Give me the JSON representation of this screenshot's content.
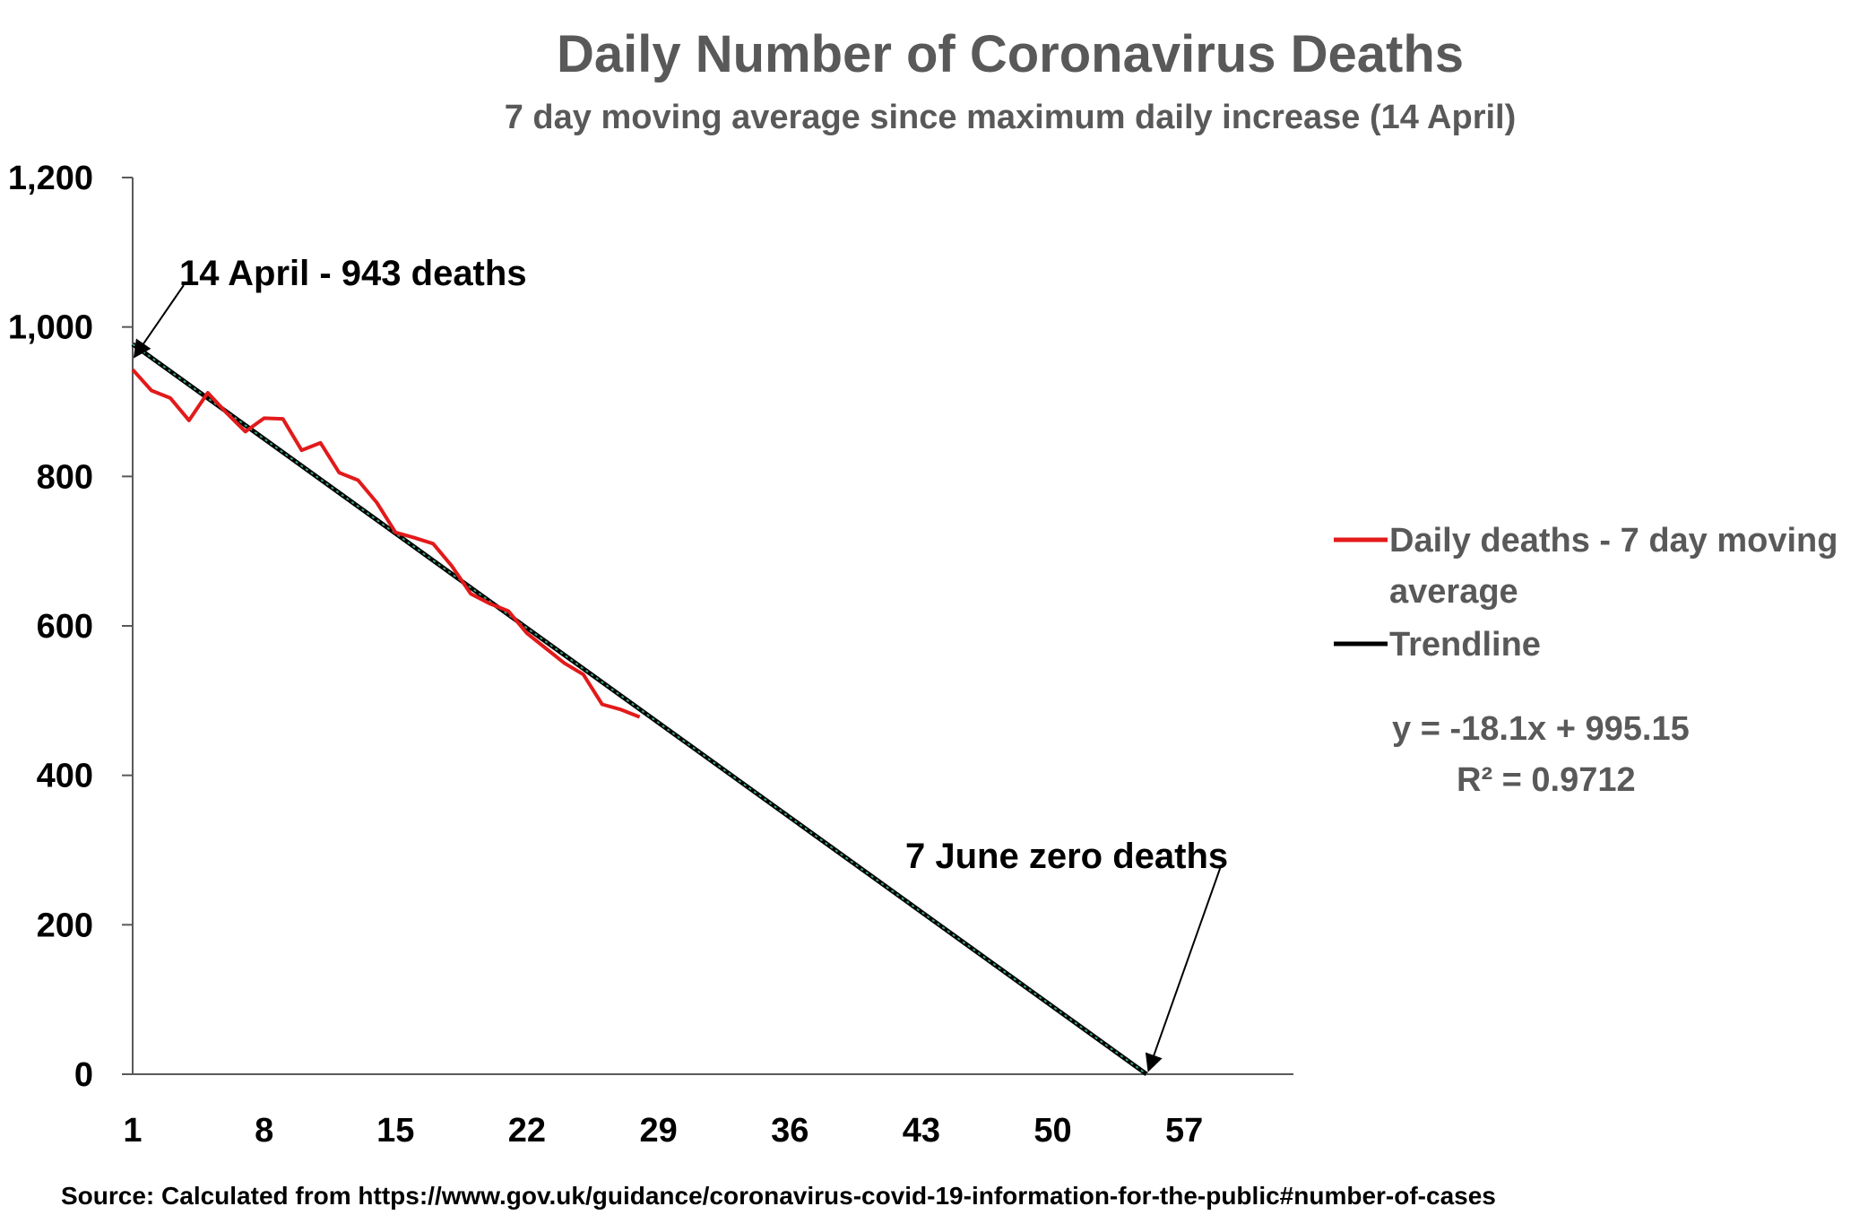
{
  "chart_data": {
    "type": "line",
    "title": "Daily Number of Coronavirus Deaths",
    "subtitle": "7 day moving average since maximum daily increase (14 April)",
    "xlabel": "",
    "ylabel": "",
    "xlim": [
      1,
      62
    ],
    "ylim": [
      0,
      1200
    ],
    "x_ticks": [
      1,
      8,
      15,
      22,
      29,
      36,
      43,
      50,
      57
    ],
    "y_ticks": [
      0,
      200,
      400,
      600,
      800,
      1000,
      1200
    ],
    "y_tick_labels": [
      "0",
      "200",
      "400",
      "600",
      "800",
      "1,000",
      "1,200"
    ],
    "grid": false,
    "legend_position": "right",
    "series": [
      {
        "name": "Daily deaths - 7 day moving average",
        "color": "#e21a1a",
        "x": [
          1,
          2,
          3,
          4,
          5,
          6,
          7,
          8,
          9,
          10,
          11,
          12,
          13,
          14,
          15,
          16,
          17,
          18,
          19,
          20,
          21,
          22,
          23,
          24,
          25,
          26,
          27,
          28
        ],
        "values": [
          943,
          915,
          905,
          875,
          912,
          885,
          860,
          878,
          877,
          835,
          845,
          805,
          795,
          765,
          725,
          718,
          710,
          680,
          643,
          630,
          620,
          590,
          570,
          550,
          535,
          495,
          488,
          478
        ]
      },
      {
        "name": "Trendline",
        "color": "#000000",
        "style": "dotted-green",
        "x": [
          1,
          55
        ],
        "values": [
          977,
          0
        ]
      }
    ],
    "trendline_equation": "y = -18.1x + 995.15",
    "r_squared": "R² = 0.9712",
    "annotations": [
      {
        "text": "14 April - 943 deaths",
        "points_to_x": 1,
        "points_to_y": 960
      },
      {
        "text": "7 June zero deaths",
        "points_to_x": 55,
        "points_to_y": 5
      }
    ],
    "source": "Source: Calculated from https://www.gov.uk/guidance/coronavirus-covid-19-information-for-the-public#number-of-cases"
  }
}
